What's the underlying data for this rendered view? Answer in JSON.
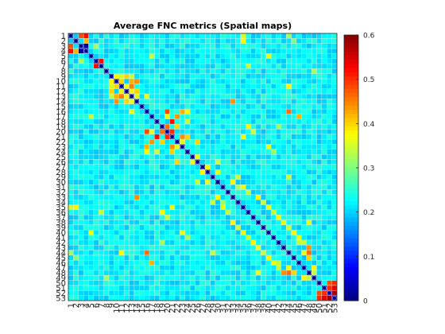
{
  "chart_data": {
    "type": "heatmap",
    "title": "Average FNC metrics (Spatial maps)",
    "n": 53,
    "x_tick_labels": [
      "1",
      "2",
      "3",
      "4",
      "5",
      "6",
      "7",
      "8",
      "9",
      "10",
      "11",
      "12",
      "13",
      "14",
      "15",
      "16",
      "17",
      "18",
      "19",
      "20",
      "21",
      "22",
      "23",
      "24",
      "25",
      "26",
      "27",
      "28",
      "29",
      "30",
      "31",
      "32",
      "33",
      "34",
      "35",
      "36",
      "37",
      "38",
      "39",
      "40",
      "41",
      "42",
      "43",
      "44",
      "45",
      "46",
      "47",
      "48",
      "49",
      "50",
      "51",
      "52",
      "53"
    ],
    "y_tick_labels": [
      "1",
      "2",
      "3",
      "4",
      "5",
      "6",
      "7",
      "8",
      "9",
      "10",
      "11",
      "12",
      "13",
      "14",
      "15",
      "16",
      "17",
      "18",
      "19",
      "20",
      "21",
      "22",
      "23",
      "24",
      "25",
      "26",
      "27",
      "28",
      "29",
      "30",
      "31",
      "32",
      "33",
      "34",
      "35",
      "36",
      "37",
      "38",
      "39",
      "40",
      "41",
      "42",
      "43",
      "44",
      "45",
      "46",
      "47",
      "48",
      "49",
      "50",
      "51",
      "52",
      "53"
    ],
    "colorbar": {
      "min": 0,
      "max": 0.6,
      "ticks": [
        "0",
        "0.1",
        "0.2",
        "0.3",
        "0.4",
        "0.5",
        "0.6"
      ],
      "colormap": "jet"
    },
    "background_value": 0.22,
    "diagonal_value": 0,
    "high_cells": [
      [
        1,
        3,
        0.48
      ],
      [
        1,
        4,
        0.52
      ],
      [
        2,
        4,
        0.06
      ],
      [
        3,
        4,
        0.02
      ],
      [
        3,
        1,
        0.48
      ],
      [
        4,
        1,
        0.52
      ],
      [
        4,
        2,
        0.42
      ],
      [
        4,
        3,
        0.02
      ],
      [
        6,
        7,
        0.5
      ],
      [
        7,
        6,
        0.52
      ],
      [
        1,
        35,
        0.35
      ],
      [
        2,
        35,
        0.38
      ],
      [
        5,
        40,
        0.36
      ],
      [
        7,
        36,
        0.34
      ],
      [
        9,
        10,
        0.38
      ],
      [
        9,
        12,
        0.4
      ],
      [
        10,
        11,
        0.4
      ],
      [
        10,
        14,
        0.44
      ],
      [
        11,
        13,
        0.45
      ],
      [
        12,
        14,
        0.4
      ],
      [
        11,
        12,
        0.36
      ],
      [
        9,
        11,
        0.35
      ],
      [
        10,
        13,
        0.42
      ],
      [
        12,
        13,
        0.38
      ],
      [
        13,
        14,
        0.36
      ],
      [
        9,
        13,
        0.34
      ],
      [
        16,
        23,
        0.42
      ],
      [
        17,
        22,
        0.44
      ],
      [
        18,
        21,
        0.52
      ],
      [
        16,
        24,
        0.38
      ],
      [
        19,
        20,
        0.46
      ],
      [
        20,
        21,
        0.5
      ],
      [
        21,
        23,
        0.44
      ],
      [
        22,
        23,
        0.36
      ],
      [
        24,
        21,
        0.4
      ],
      [
        17,
        20,
        0.36
      ],
      [
        18,
        24,
        0.34
      ],
      [
        19,
        22,
        0.4
      ],
      [
        16,
        20,
        0.48
      ],
      [
        14,
        33,
        0.44
      ],
      [
        27,
        28,
        0.38
      ],
      [
        28,
        30,
        0.36
      ],
      [
        29,
        34,
        0.34
      ],
      [
        30,
        33,
        0.38
      ],
      [
        31,
        35,
        0.36
      ],
      [
        32,
        36,
        0.34
      ],
      [
        33,
        38,
        0.38
      ],
      [
        34,
        39,
        0.34
      ],
      [
        35,
        40,
        0.36
      ],
      [
        36,
        41,
        0.34
      ],
      [
        37,
        42,
        0.38
      ],
      [
        38,
        43,
        0.36
      ],
      [
        39,
        44,
        0.34
      ],
      [
        40,
        45,
        0.38
      ],
      [
        41,
        46,
        0.36
      ],
      [
        42,
        47,
        0.34
      ],
      [
        43,
        48,
        0.44
      ],
      [
        44,
        48,
        0.46
      ],
      [
        45,
        48,
        0.4
      ],
      [
        44,
        47,
        0.36
      ],
      [
        47,
        49,
        0.38
      ],
      [
        48,
        49,
        0.34
      ],
      [
        44,
        29,
        0.34
      ],
      [
        48,
        38,
        0.36
      ],
      [
        42,
        19,
        0.32
      ],
      [
        35,
        40,
        0.36
      ],
      [
        51,
        52,
        0.5
      ],
      [
        51,
        53,
        0.54
      ],
      [
        50,
        52,
        0.48
      ],
      [
        52,
        53,
        0.58
      ],
      [
        50,
        53,
        0.5
      ],
      [
        3,
        6,
        0.32
      ],
      [
        16,
        44,
        0.46
      ],
      [
        17,
        46,
        0.42
      ],
      [
        22,
        26,
        0.4
      ],
      [
        25,
        26,
        0.36
      ],
      [
        5,
        17,
        0.34
      ],
      [
        13,
        16,
        0.36
      ],
      [
        19,
        36,
        0.38
      ],
      [
        20,
        37,
        0.34
      ],
      [
        21,
        35,
        0.36
      ],
      [
        11,
        44,
        0.38
      ],
      [
        14,
        33,
        0.44
      ],
      [
        26,
        30,
        0.34
      ],
      [
        31,
        34,
        0.32
      ],
      [
        42,
        46,
        0.34
      ],
      [
        1,
        44,
        0.32
      ],
      [
        2,
        45,
        0.3
      ],
      [
        8,
        49,
        0.32
      ],
      [
        24,
        41,
        0.32
      ],
      [
        23,
        40,
        0.36
      ]
    ]
  }
}
